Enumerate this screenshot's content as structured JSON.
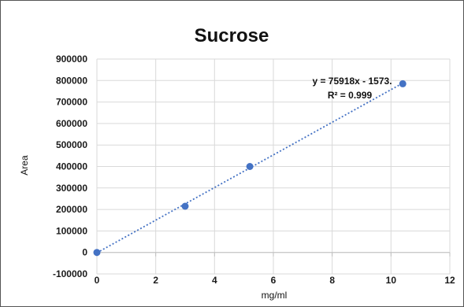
{
  "chart_data": {
    "type": "scatter",
    "title": "Sucrose",
    "xlabel": "mg/ml",
    "ylabel": "Area",
    "xlim": [
      0,
      12
    ],
    "ylim": [
      -100000,
      900000
    ],
    "x_ticks": [
      0,
      2,
      4,
      6,
      8,
      10,
      12
    ],
    "y_ticks": [
      -100000,
      0,
      100000,
      200000,
      300000,
      400000,
      500000,
      600000,
      700000,
      800000,
      900000
    ],
    "grid": true,
    "points": [
      {
        "x": 0,
        "y": 0
      },
      {
        "x": 3,
        "y": 215000
      },
      {
        "x": 5.2,
        "y": 400000
      },
      {
        "x": 10.4,
        "y": 785000
      }
    ],
    "marker_color": "#4472C4",
    "trendline": {
      "type": "linear",
      "slope": 75918,
      "intercept": -1573,
      "color": "#4472C4",
      "style": "dotted",
      "equation_label": "y = 75918x - 1573.",
      "r2_label": "R² = 0.999"
    }
  }
}
